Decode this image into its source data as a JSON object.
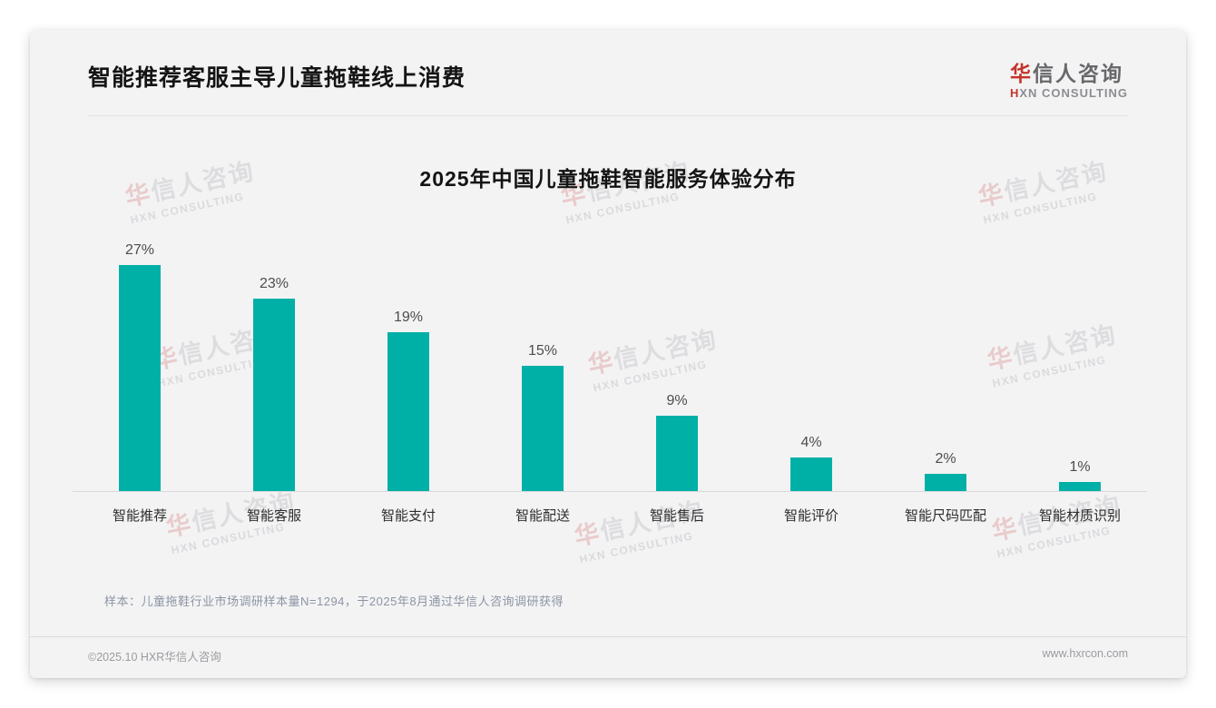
{
  "header": {
    "title": "智能推荐客服主导儿童拖鞋线上消费",
    "logo": {
      "cn_accent": "华",
      "cn_rest": "信人咨询",
      "en_accent": "H",
      "en_rest": "XN CONSULTING"
    }
  },
  "chart_data": {
    "type": "bar",
    "title": "2025年中国儿童拖鞋智能服务体验分布",
    "categories": [
      "智能推荐",
      "智能客服",
      "智能支付",
      "智能配送",
      "智能售后",
      "智能评价",
      "智能尺码匹配",
      "智能材质识别"
    ],
    "values": [
      27,
      23,
      19,
      15,
      9,
      4,
      2,
      1
    ],
    "unit": "%",
    "xlabel": "",
    "ylabel": "",
    "ylim": [
      0,
      30
    ],
    "grid": false,
    "legend": "none",
    "data_labels": true,
    "bar_color": "#00b0a7"
  },
  "note": "样本：儿童拖鞋行业市场调研样本量N=1294，于2025年8月通过华信人咨询调研获得",
  "footer": {
    "copyright": "©2025.10 HXR华信人咨询",
    "website": "www.hxrcon.com"
  },
  "watermark": {
    "line1_accent": "华",
    "line1_rest": "信人咨询",
    "line2": "HXN CONSULTING"
  }
}
